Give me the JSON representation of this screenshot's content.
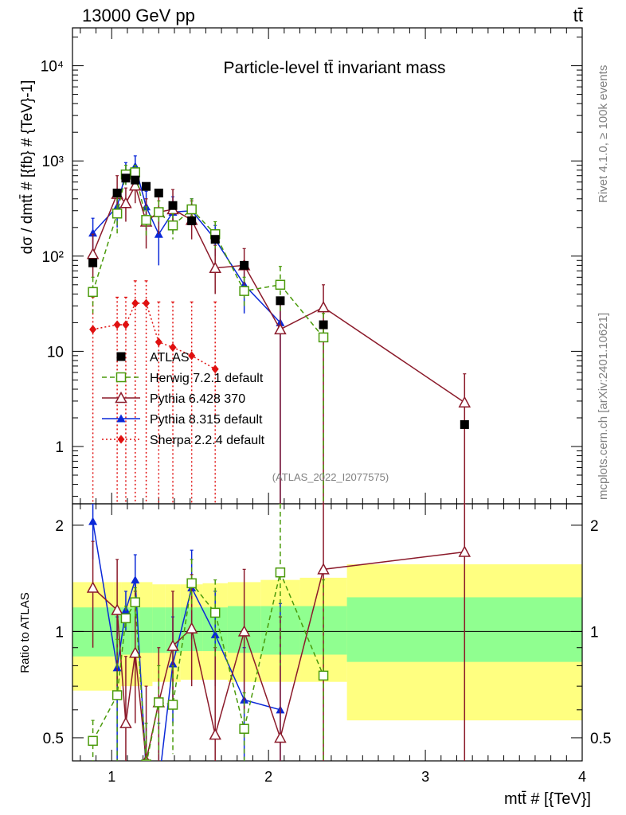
{
  "header": {
    "energy_label": "13000 GeV pp",
    "process_label": "tt̄",
    "plot_title": "Particle-level tt̄ invariant mass",
    "side_label_top": "Rivet 4.1.0, ≥ 100k events",
    "side_label_bottom": "mcplots.cern.ch [arXiv:2401.10621]",
    "analysis_id": "(ATLAS_2022_I2077575)"
  },
  "chart_data": {
    "type": "scatter",
    "title": "Particle-level tt̄ invariant mass",
    "xlabel": "mtt̄ # [{TeV}]",
    "ylabel": "dσ / dmtt̄ # [{fb} # {TeV}-1]",
    "ratio_ylabel": "Ratio to ATLAS",
    "xlim": [
      0.75,
      4.0
    ],
    "ylim": [
      0.25,
      25000
    ],
    "yscale": "log",
    "ratio_ylim": [
      0.43,
      2.3
    ],
    "ratio_yscale": "log",
    "x_ticks": [
      "1",
      "2",
      "3",
      "4"
    ],
    "y_ticks": [
      "1",
      "10",
      "10²",
      "10³",
      "10⁴"
    ],
    "ratio_ticks": [
      "0.5",
      "1",
      "2"
    ],
    "bins": [
      [
        0.75,
        1.01
      ],
      [
        1.01,
        1.06
      ],
      [
        1.06,
        1.12
      ],
      [
        1.12,
        1.18
      ],
      [
        1.18,
        1.26
      ],
      [
        1.26,
        1.34
      ],
      [
        1.34,
        1.44
      ],
      [
        1.44,
        1.58
      ],
      [
        1.58,
        1.74
      ],
      [
        1.74,
        1.95
      ],
      [
        1.95,
        2.2
      ],
      [
        2.2,
        2.5
      ],
      [
        2.5,
        4.0
      ]
    ],
    "x": [
      0.88,
      1.035,
      1.09,
      1.15,
      1.22,
      1.3,
      1.39,
      1.51,
      1.66,
      1.845,
      2.075,
      2.35,
      3.25
    ],
    "band_inner": [
      [
        0.85,
        1.17
      ],
      [
        0.85,
        1.17
      ],
      [
        0.86,
        1.17
      ],
      [
        0.86,
        1.17
      ],
      [
        0.87,
        1.17
      ],
      [
        0.87,
        1.17
      ],
      [
        0.87,
        1.17
      ],
      [
        0.88,
        1.17
      ],
      [
        0.88,
        1.17
      ],
      [
        0.87,
        1.18
      ],
      [
        0.86,
        1.18
      ],
      [
        0.86,
        1.18
      ],
      [
        0.82,
        1.25
      ]
    ],
    "band_outer": [
      [
        0.68,
        1.38
      ],
      [
        0.68,
        1.38
      ],
      [
        0.7,
        1.38
      ],
      [
        0.7,
        1.38
      ],
      [
        0.7,
        1.38
      ],
      [
        0.72,
        1.36
      ],
      [
        0.72,
        1.36
      ],
      [
        0.73,
        1.36
      ],
      [
        0.73,
        1.37
      ],
      [
        0.72,
        1.38
      ],
      [
        0.72,
        1.4
      ],
      [
        0.72,
        1.42
      ],
      [
        0.56,
        1.55
      ]
    ],
    "series": [
      {
        "name": "ATLAS",
        "color": "#000000",
        "marker": "square-filled",
        "line": "none",
        "values": [
          85,
          460,
          660,
          630,
          540,
          460,
          340,
          235,
          150,
          80,
          34,
          19,
          1.7
        ]
      },
      {
        "name": "Herwig 7.2.1 default",
        "color": "#4a9a0a",
        "marker": "square-open",
        "line": "dashed",
        "values": [
          42,
          280,
          720,
          760,
          240,
          290,
          210,
          310,
          170,
          43,
          50,
          14,
          null
        ],
        "err_hi": [
          60,
          420,
          900,
          900,
          330,
          380,
          280,
          400,
          230,
          60,
          78,
          25,
          null
        ],
        "err_lo": [
          25,
          160,
          560,
          640,
          160,
          210,
          150,
          220,
          120,
          30,
          26,
          0.1,
          null
        ],
        "ratio": [
          0.49,
          0.66,
          1.09,
          1.21,
          0.42,
          0.63,
          0.62,
          1.37,
          1.13,
          0.53,
          1.47,
          0.75,
          null
        ],
        "ratio_hi": [
          0.56,
          0.95,
          1.18,
          1.33,
          0.55,
          0.8,
          0.8,
          1.6,
          1.4,
          0.67,
          2.3,
          1.4,
          null
        ],
        "ratio_lo": [
          0.3,
          0.4,
          1.0,
          1.1,
          0.3,
          0.45,
          0.45,
          1.15,
          0.85,
          0.4,
          0.8,
          0.3,
          null
        ]
      },
      {
        "name": "Pythia 6.428 370",
        "color": "#8b1a2a",
        "marker": "triangle-open",
        "line": "solid",
        "values": [
          105,
          450,
          360,
          550,
          230,
          290,
          310,
          240,
          75,
          80,
          17,
          29,
          2.9
        ],
        "err_hi": [
          170,
          700,
          520,
          800,
          400,
          460,
          500,
          380,
          130,
          120,
          35,
          50,
          5.8
        ],
        "err_lo": [
          60,
          260,
          230,
          360,
          120,
          170,
          190,
          150,
          40,
          50,
          0.1,
          0.1,
          0.1
        ],
        "ratio": [
          1.33,
          1.15,
          0.55,
          0.87,
          0.43,
          0.63,
          0.91,
          1.02,
          0.51,
          1.0,
          0.5,
          1.5,
          1.68
        ],
        "ratio_hi": [
          1.8,
          1.6,
          0.85,
          1.3,
          0.7,
          0.9,
          1.3,
          1.45,
          0.9,
          1.5,
          1.1,
          2.3,
          2.3
        ],
        "ratio_lo": [
          0.9,
          0.7,
          0.35,
          0.55,
          0.3,
          0.4,
          0.6,
          0.7,
          0.3,
          0.6,
          0.3,
          0.43,
          0.43
        ]
      },
      {
        "name": "Pythia 8.315 default",
        "color": "#0a28d8",
        "marker": "triangle-filled",
        "line": "solid",
        "values": [
          175,
          330,
          760,
          880,
          330,
          170,
          290,
          300,
          150,
          50,
          20,
          null,
          null
        ],
        "err_hi": [
          250,
          480,
          960,
          1130,
          480,
          280,
          420,
          400,
          210,
          80,
          33,
          null,
          null
        ],
        "err_lo": [
          110,
          200,
          560,
          640,
          190,
          80,
          180,
          210,
          100,
          25,
          0.1,
          null,
          null
        ],
        "ratio": [
          2.05,
          0.79,
          1.15,
          1.4,
          0.4,
          0.37,
          0.81,
          1.33,
          0.98,
          0.64,
          0.6,
          null,
          null
        ],
        "ratio_hi": [
          2.3,
          1.1,
          1.3,
          1.65,
          0.55,
          0.55,
          1.1,
          1.7,
          1.3,
          0.9,
          1.2,
          null,
          null
        ],
        "ratio_lo": [
          1.6,
          0.43,
          1.0,
          1.15,
          0.3,
          0.3,
          0.55,
          0.95,
          0.7,
          0.43,
          0.43,
          null,
          null
        ]
      },
      {
        "name": "Sherpa 2.2.4 default",
        "color": "#e01010",
        "marker": "diamond-filled",
        "line": "dotted",
        "values": [
          17,
          19,
          19,
          32,
          32,
          12.5,
          11,
          9,
          6.5,
          null,
          null,
          null,
          null
        ],
        "err_hi": [
          37,
          37,
          37,
          55,
          55,
          33,
          33,
          33,
          33,
          null,
          null,
          null,
          null
        ],
        "err_lo": [
          0.1,
          0.1,
          0.1,
          0.1,
          0.1,
          0.1,
          0.1,
          0.1,
          0.1,
          null,
          null,
          null,
          null
        ]
      }
    ]
  }
}
